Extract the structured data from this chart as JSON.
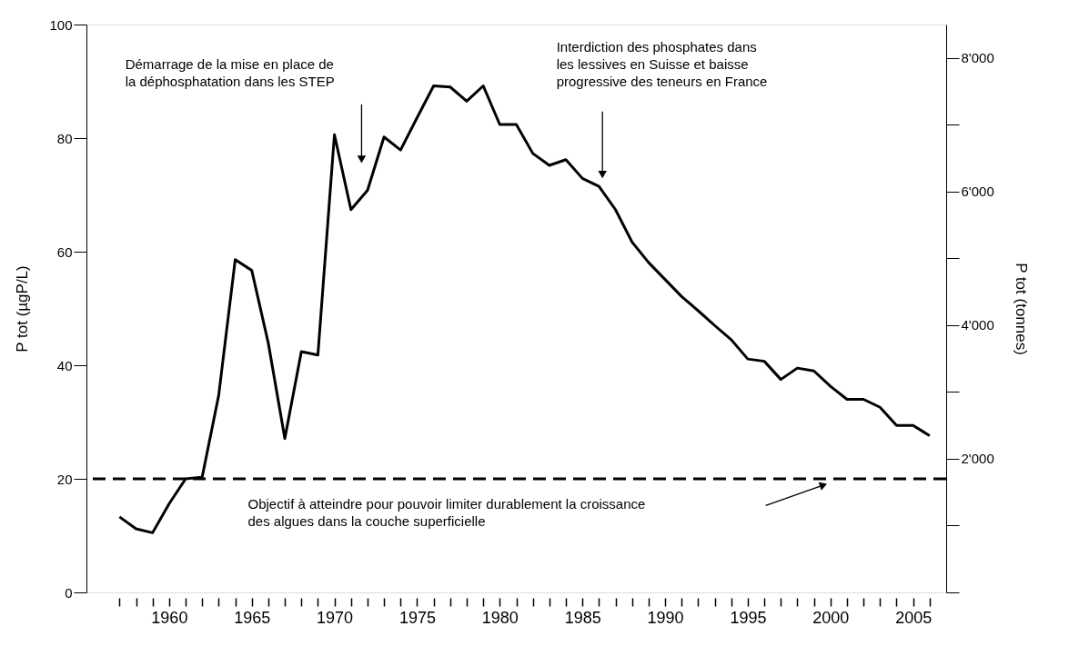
{
  "chart_data": {
    "type": "line",
    "xlabel": null,
    "ylabel": "P tot  (µgP/L)",
    "y2label": "P tot  (tonnes)",
    "x": [
      1957,
      1958,
      1959,
      1960,
      1961,
      1962,
      1963,
      1964,
      1965,
      1966,
      1967,
      1968,
      1969,
      1970,
      1971,
      1972,
      1973,
      1974,
      1975,
      1976,
      1977,
      1978,
      1979,
      1980,
      1981,
      1982,
      1983,
      1984,
      1985,
      1986,
      1987,
      1988,
      1989,
      1990,
      1991,
      1992,
      1993,
      1994,
      1995,
      1996,
      1997,
      1998,
      1999,
      2000,
      2001,
      2002,
      2003,
      2004,
      2005,
      2006
    ],
    "series": [
      {
        "color": "#000000",
        "values": [
          13.3,
          11.2,
          10.5,
          15.6,
          20.0,
          20.3,
          34.7,
          58.6,
          56.7,
          43.9,
          27.1,
          42.4,
          41.8,
          80.6,
          67.4,
          70.8,
          80.2,
          77.9,
          83.6,
          89.2,
          89.0,
          86.5,
          89.2,
          82.4,
          82.4,
          77.3,
          75.2,
          76.2,
          72.9,
          71.5,
          67.4,
          61.7,
          58.1,
          55.1,
          52.1,
          49.6,
          47.0,
          44.5,
          41.1,
          40.7,
          37.5,
          39.5,
          39.0,
          36.3,
          34.0,
          34.0,
          32.6,
          29.4,
          29.4,
          27.6
        ]
      }
    ],
    "xlim": [
      1955,
      2007
    ],
    "xticks": [
      {
        "value": 1957,
        "label": null
      },
      {
        "value": 1958,
        "label": null
      },
      {
        "value": 1959,
        "label": null
      },
      1960,
      {
        "value": 1961,
        "label": null
      },
      {
        "value": 1962,
        "label": null
      },
      {
        "value": 1963,
        "label": null
      },
      {
        "value": 1964,
        "label": null
      },
      1965,
      {
        "value": 1966,
        "label": null
      },
      {
        "value": 1967,
        "label": null
      },
      {
        "value": 1968,
        "label": null
      },
      {
        "value": 1969,
        "label": null
      },
      1970,
      {
        "value": 1971,
        "label": null
      },
      {
        "value": 1972,
        "label": null
      },
      {
        "value": 1973,
        "label": null
      },
      {
        "value": 1974,
        "label": null
      },
      1975,
      {
        "value": 1976,
        "label": null
      },
      {
        "value": 1977,
        "label": null
      },
      {
        "value": 1978,
        "label": null
      },
      {
        "value": 1979,
        "label": null
      },
      1980,
      {
        "value": 1981,
        "label": null
      },
      {
        "value": 1982,
        "label": null
      },
      {
        "value": 1983,
        "label": null
      },
      {
        "value": 1984,
        "label": null
      },
      1985,
      {
        "value": 1986,
        "label": null
      },
      {
        "value": 1987,
        "label": null
      },
      {
        "value": 1988,
        "label": null
      },
      {
        "value": 1989,
        "label": null
      },
      1990,
      {
        "value": 1991,
        "label": null
      },
      {
        "value": 1992,
        "label": null
      },
      {
        "value": 1993,
        "label": null
      },
      {
        "value": 1994,
        "label": null
      },
      1995,
      {
        "value": 1996,
        "label": null
      },
      {
        "value": 1997,
        "label": null
      },
      {
        "value": 1998,
        "label": null
      },
      {
        "value": 1999,
        "label": null
      },
      2000,
      {
        "value": 2001,
        "label": null
      },
      {
        "value": 2002,
        "label": null
      },
      {
        "value": 2003,
        "label": null
      },
      {
        "value": 2004,
        "label": null
      },
      2005,
      {
        "value": 2006,
        "label": null
      }
    ],
    "ylim": [
      0,
      100
    ],
    "yticks": [
      0,
      20,
      40,
      60,
      80,
      100
    ],
    "y2lim": [
      0,
      8500
    ],
    "y2ticks": [
      {
        "value": 0,
        "label": null
      },
      {
        "value": 1000,
        "label": null
      },
      {
        "value": 2000,
        "label": "2'000"
      },
      {
        "value": 3000,
        "label": null
      },
      {
        "value": 4000,
        "label": "4'000"
      },
      {
        "value": 5000,
        "label": null
      },
      {
        "value": 6000,
        "label": "6'000"
      },
      {
        "value": 7000,
        "label": null
      },
      {
        "value": 8000,
        "label": "8'000"
      }
    ],
    "ref_lines": [
      {
        "axis": "y",
        "value": 20,
        "label": null,
        "color": "#000000",
        "line_style": "dashed"
      }
    ],
    "annotations": [
      "Démarrage de la mise en place de\nla déphosphatation dans les STEP",
      "Interdiction des phosphates dans\nles lessives en Suisse et baisse\nprogressive des teneurs en France",
      "Objectif à atteindre pour pouvoir limiter durablement la croissance\ndes algues dans la couche superficielle"
    ],
    "grid": false,
    "marker": "none"
  }
}
